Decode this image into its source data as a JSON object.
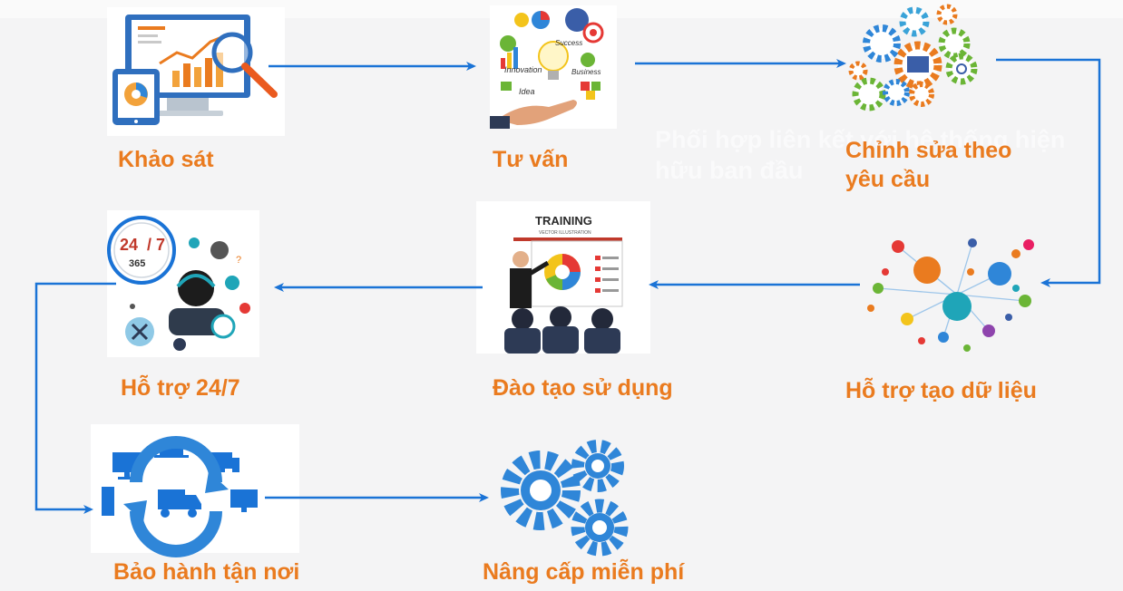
{
  "watermark_text": "Phối hợp liên kết với hệ thống hiện hữu ban đầu",
  "steps": [
    {
      "label": "Khảo sát"
    },
    {
      "label": "Tư vấn"
    },
    {
      "label": "Chỉnh sửa theo yêu cầu"
    },
    {
      "label": "Hỗ trợ tạo dữ liệu"
    },
    {
      "label": "Đào tạo sử dụng"
    },
    {
      "label": "Hỗ trợ 24/7"
    },
    {
      "label": "Bảo hành tận nơi"
    },
    {
      "label": "Nâng cấp miễn phí"
    }
  ],
  "illustrations": {
    "tuvan": [
      "Innovation",
      "Success",
      "Business",
      "Idea"
    ],
    "training_title": "TRAINING",
    "training_subtitle": "VECTOR ILLUSTRATION",
    "support_clock": [
      "24",
      "7",
      "365"
    ]
  },
  "colors": {
    "label": "#ea7b1f",
    "arrow": "#1a73d6",
    "gear": "#2f86d8"
  }
}
